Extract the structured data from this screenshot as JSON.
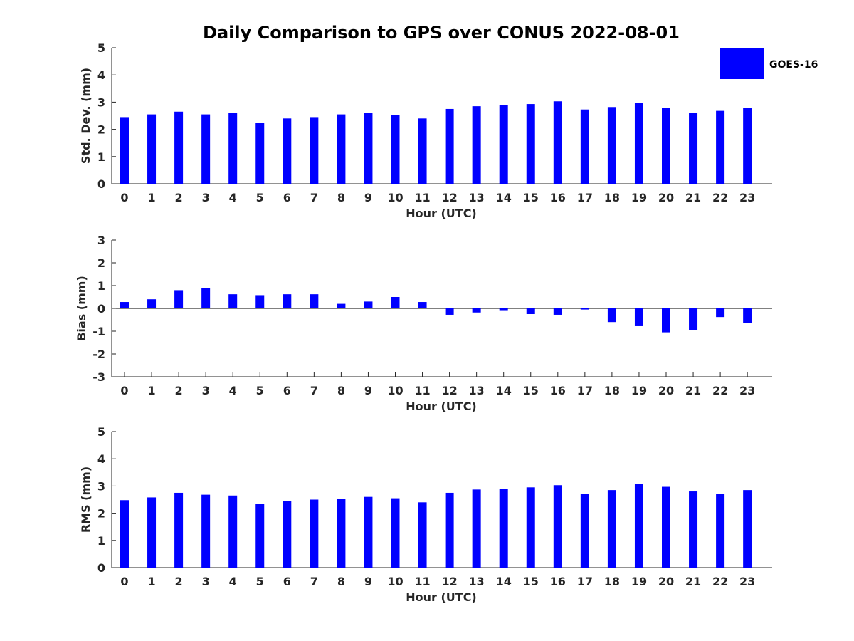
{
  "figure_title": "Daily Comparison to GPS over CONUS 2022-08-01",
  "legend": {
    "label": "GOES-16",
    "color": "#0000ff"
  },
  "chart_data": [
    {
      "type": "bar",
      "ylabel": "Std. Dev. (mm)",
      "xlabel": "Hour (UTC)",
      "ylim": [
        0,
        5
      ],
      "yticks": [
        0,
        1,
        2,
        3,
        4,
        5
      ],
      "categories": [
        "0",
        "1",
        "2",
        "3",
        "4",
        "5",
        "6",
        "7",
        "8",
        "9",
        "10",
        "11",
        "12",
        "13",
        "14",
        "15",
        "16",
        "17",
        "18",
        "19",
        "20",
        "21",
        "22",
        "23"
      ],
      "series": [
        {
          "name": "GOES-16",
          "values": [
            2.45,
            2.55,
            2.65,
            2.55,
            2.6,
            2.25,
            2.4,
            2.45,
            2.55,
            2.6,
            2.52,
            2.4,
            2.75,
            2.85,
            2.9,
            2.93,
            3.03,
            2.73,
            2.82,
            2.98,
            2.8,
            2.6,
            2.68,
            2.78
          ]
        }
      ]
    },
    {
      "type": "bar",
      "ylabel": "Bias (mm)",
      "xlabel": "Hour (UTC)",
      "ylim": [
        -3,
        3
      ],
      "yticks": [
        -3,
        -2,
        -1,
        0,
        1,
        2,
        3
      ],
      "categories": [
        "0",
        "1",
        "2",
        "3",
        "4",
        "5",
        "6",
        "7",
        "8",
        "9",
        "10",
        "11",
        "12",
        "13",
        "14",
        "15",
        "16",
        "17",
        "18",
        "19",
        "20",
        "21",
        "22",
        "23"
      ],
      "series": [
        {
          "name": "GOES-16",
          "values": [
            0.28,
            0.4,
            0.8,
            0.9,
            0.62,
            0.58,
            0.62,
            0.62,
            0.2,
            0.3,
            0.5,
            0.28,
            -0.28,
            -0.18,
            -0.08,
            -0.25,
            -0.28,
            -0.05,
            -0.6,
            -0.78,
            -1.05,
            -0.95,
            -0.38,
            -0.65
          ]
        }
      ]
    },
    {
      "type": "bar",
      "ylabel": "RMS (mm)",
      "xlabel": "Hour (UTC)",
      "ylim": [
        0,
        5
      ],
      "yticks": [
        0,
        1,
        2,
        3,
        4,
        5
      ],
      "categories": [
        "0",
        "1",
        "2",
        "3",
        "4",
        "5",
        "6",
        "7",
        "8",
        "9",
        "10",
        "11",
        "12",
        "13",
        "14",
        "15",
        "16",
        "17",
        "18",
        "19",
        "20",
        "21",
        "22",
        "23"
      ],
      "series": [
        {
          "name": "GOES-16",
          "values": [
            2.48,
            2.58,
            2.75,
            2.68,
            2.65,
            2.35,
            2.45,
            2.5,
            2.53,
            2.6,
            2.55,
            2.4,
            2.75,
            2.87,
            2.9,
            2.95,
            3.03,
            2.72,
            2.85,
            3.08,
            2.97,
            2.8,
            2.72,
            2.85
          ]
        }
      ]
    }
  ]
}
